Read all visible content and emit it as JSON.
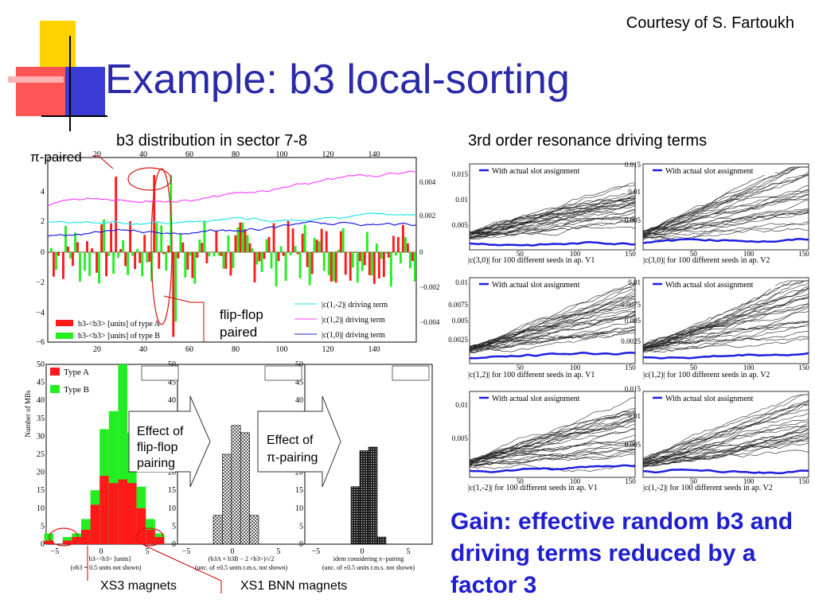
{
  "courtesy": "Courtesy of S. Fartoukh",
  "title": "Example: b3 local-sorting",
  "left_heading": "b3 distribution in sector 7-8",
  "right_heading": "3rd order resonance driving terms",
  "labels": {
    "pi_paired": "π-paired",
    "flip_flop_1": "flip-flop",
    "flip_flop_2": "paired",
    "xs3": "XS3 magnets",
    "xs1": "XS1 BNN magnets"
  },
  "callouts": {
    "flip1": "Effect of",
    "flip2": "flip-flop",
    "flip3": "pairing",
    "pi1": "Effect of",
    "pi2": "π-pairing"
  },
  "gain": "Gain: effective random b3 and driving terms reduced by a factor 3",
  "main_chart": {
    "top_ticks": [
      "20",
      "40",
      "60",
      "80",
      "100",
      "120",
      "140"
    ],
    "bottom_ticks": [
      "20",
      "40",
      "60",
      "80",
      "100",
      "120",
      "140"
    ],
    "left_ticks": [
      "4",
      "2",
      "0",
      "−2",
      "−4",
      "−6"
    ],
    "right_ticks": [
      "0.004",
      "0.002",
      "0",
      "−0.002",
      "−0.004"
    ],
    "legend_a": "b3-<b3> [units] of type A",
    "legend_b": "b3-<b3> [units] of type B",
    "dt1": "|c(1,-2)| driving term",
    "dt2": "|c(1,2)| driving term",
    "dt3": "|c(1,0)| driving term"
  },
  "hist": {
    "ylabel": "Number of MBs",
    "yticks": [
      "50",
      "45",
      "40",
      "35",
      "30",
      "25",
      "20",
      "15",
      "10",
      "5",
      "0"
    ],
    "xticks": [
      "−5",
      "0",
      "5"
    ],
    "type_a": "Type A",
    "type_b": "Type B",
    "xl1a": "b3−<b3> [units]",
    "xl1b": "(σb3 = 0.5 units not shown)",
    "xl2a": "(b3A + b3B − 2 <b3>)/√2",
    "xl2b": "(unc. of ±0.5 units r.m.s. not shown)",
    "xl3a": "idem considering π−pairing",
    "xl3b": "(unc. of ±0.5 units r.m.s. not shown)"
  },
  "small": {
    "legend": "With actual slot assignment",
    "cap1": "|c(3,0)| for 100 different seeds in ap. V1",
    "cap2": "|c(3,0)| for 100 different seeds in ap. V2",
    "cap3": "|c(1,2)| for 100 different seeds in ap. V1",
    "cap4": "|c(1,2)| for 100 different seeds in ap. V2",
    "cap5": "|c(1,-2)| for 100 different seeds in ap. V1",
    "cap6": "|c(1,-2)| for 100 different seeds in ap. V2",
    "y1": [
      "0.015",
      "0.01",
      "0.005"
    ],
    "y2": [
      "0.015",
      "0.01",
      "0.005"
    ],
    "y3": [
      "0.01",
      "0.0075",
      "0.005",
      "0.0025"
    ],
    "y4": [
      "0.01",
      "0.0075",
      "0.005",
      "0.0025"
    ],
    "y5": [
      "0.01",
      "0.005"
    ],
    "y6": [
      "0.015",
      "0.01",
      "0.005"
    ],
    "xt": [
      "50",
      "100",
      "150"
    ]
  },
  "colors": {
    "title": "#2a2aa8",
    "gain": "#1f1fcf",
    "red": "#ff1a1a",
    "green": "#22ee22",
    "blue": "#1f1fe0",
    "magenta": "#ff44ff",
    "cyan": "#22e6e6"
  }
}
